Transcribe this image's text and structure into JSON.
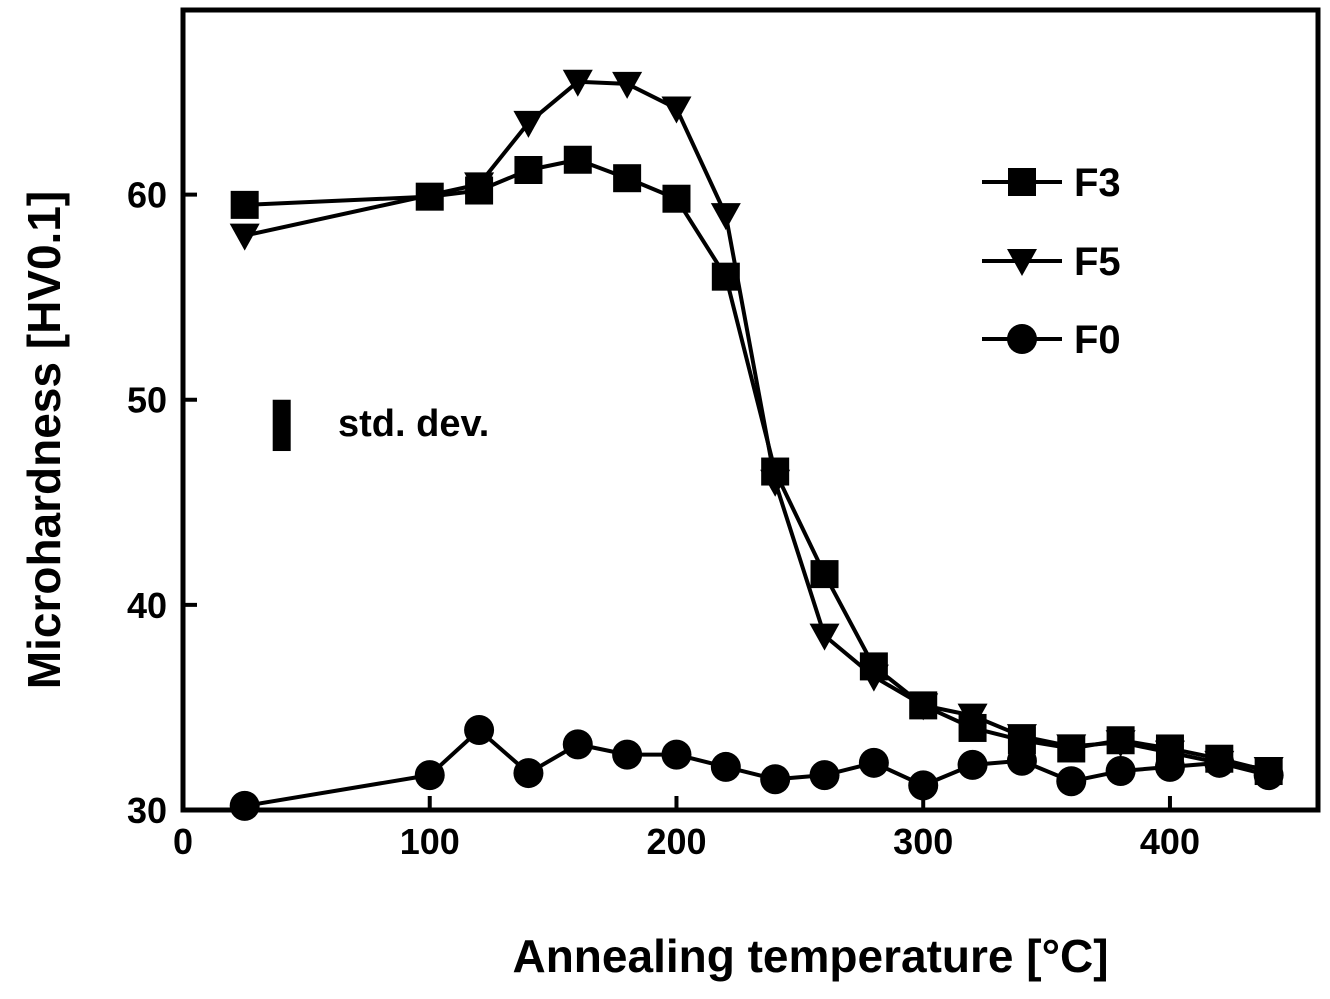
{
  "chart_data": {
    "type": "line",
    "title": "",
    "xlabel": "Annealing temperature [°C]",
    "ylabel": "Microhardness [HV0.1]",
    "xlim": [
      0,
      460
    ],
    "ylim": [
      30,
      69
    ],
    "xticks": [
      0,
      100,
      200,
      300,
      400
    ],
    "yticks": [
      30,
      40,
      50,
      60
    ],
    "xtick_labels": [
      "0",
      "100",
      "200",
      "300",
      "400"
    ],
    "ytick_labels": [
      "30",
      "40",
      "50",
      "60"
    ],
    "grid": false,
    "legend_position": "top-right",
    "annotation": {
      "label": "std. dev.",
      "x": 40,
      "y_low": 47.5,
      "y_high": 50.0
    },
    "series": [
      {
        "name": "F3",
        "marker": "square",
        "x": [
          25,
          100,
          120,
          140,
          160,
          180,
          200,
          220,
          240,
          260,
          280,
          300,
          320,
          340,
          360,
          380,
          400,
          420,
          440
        ],
        "y": [
          59.5,
          59.9,
          60.2,
          61.2,
          61.7,
          60.8,
          59.8,
          56.0,
          46.5,
          41.5,
          37.0,
          35.1,
          34.0,
          33.4,
          33.0,
          33.4,
          33.0,
          32.5,
          31.9
        ]
      },
      {
        "name": "F5",
        "marker": "triangle-down",
        "x": [
          25,
          120,
          140,
          160,
          180,
          200,
          220,
          240,
          260,
          280,
          300,
          320,
          340,
          360,
          380,
          400,
          420,
          440
        ],
        "y": [
          58.0,
          60.5,
          63.5,
          65.5,
          65.4,
          64.2,
          59.0,
          46.0,
          38.5,
          36.5,
          35.1,
          34.6,
          33.6,
          33.1,
          33.3,
          32.8,
          32.3,
          32.0
        ]
      },
      {
        "name": "F0",
        "marker": "circle",
        "x": [
          25,
          100,
          120,
          140,
          160,
          180,
          200,
          220,
          240,
          260,
          280,
          300,
          320,
          340,
          360,
          380,
          400,
          420,
          440
        ],
        "y": [
          30.2,
          31.7,
          33.9,
          31.8,
          33.2,
          32.7,
          32.7,
          32.1,
          31.5,
          31.7,
          32.3,
          31.2,
          32.2,
          32.4,
          31.4,
          31.9,
          32.1,
          32.3,
          31.7
        ]
      }
    ]
  }
}
